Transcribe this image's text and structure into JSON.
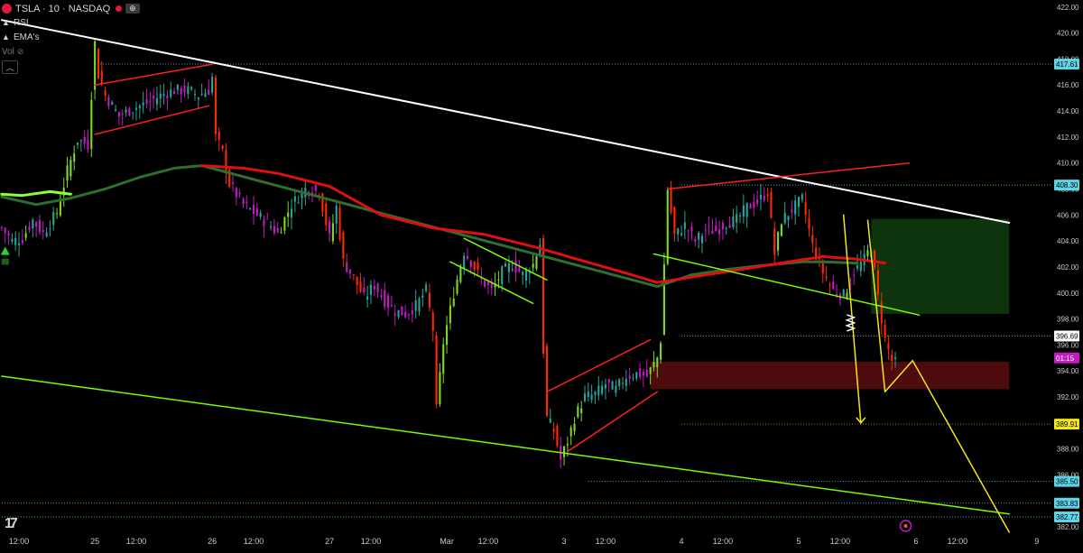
{
  "header": {
    "symbol": "TSLA · 10 · NASDAQ",
    "indicators": [
      "RSI",
      "EMA's"
    ],
    "vol_label": "Vol",
    "collapse_icon": "chevron-up-icon"
  },
  "colors": {
    "background": "#000000",
    "up": "#26a69a",
    "up_green": "#7cd82a",
    "down": "#c21bc2",
    "down_red": "#ff2a00",
    "ema_fast_up": "#8aff3b",
    "ema_slow": "#2f6e2f",
    "ema_red": "#e01010",
    "trendline": "#ffffff",
    "channel_green": "#7cfc00",
    "wedge_red": "#ff2020",
    "projection": "#f5e61b",
    "supply_zone": "#5a0d0d",
    "target_zone": "#0f3a0f"
  },
  "chart_data": {
    "type": "candlestick",
    "interval": "10",
    "symbol": "TSLA",
    "exchange": "NASDAQ",
    "ylim": [
      381.8,
      422.4
    ],
    "y_ticks": [
      "422.00",
      "420.00",
      "418.00",
      "416.00",
      "414.00",
      "412.00",
      "410.00",
      "408.00",
      "406.00",
      "404.00",
      "402.00",
      "400.00",
      "398.00",
      "396.00",
      "394.00",
      "392.00",
      "390.00",
      "388.00",
      "386.00",
      "384.00",
      "382.00"
    ],
    "y_tick_values": [
      422,
      420,
      418,
      416,
      414,
      412,
      410,
      408,
      406,
      404,
      402,
      400,
      398,
      396,
      394,
      392,
      390,
      388,
      386,
      384,
      382
    ],
    "x_ticks": [
      "12:00",
      "25",
      "12:00",
      "26",
      "12:00",
      "27",
      "12:00",
      "Mar",
      "12:00",
      "3",
      "12:00",
      "4",
      "12:00",
      "5",
      "12:00",
      "6",
      "12:00",
      "9"
    ],
    "x_tick_index": [
      5,
      27,
      39,
      61,
      73,
      95,
      107,
      129,
      141,
      163,
      175,
      197,
      209,
      231,
      243,
      265,
      277,
      300
    ],
    "x_total": 305,
    "price_labels": [
      {
        "text": "417.61",
        "value": 417.61,
        "color": "#5fd3e6",
        "text_color": "#000000"
      },
      {
        "text": "408.30",
        "value": 408.3,
        "color": "#5fd3e6",
        "text_color": "#000000"
      },
      {
        "text": "396.69",
        "value": 396.69,
        "color": "#ffffff",
        "text_color": "#000000"
      },
      {
        "text": "01:15",
        "value": 395.0,
        "color": "#c21bc2",
        "text_color": "#ffffff"
      },
      {
        "text": "389.91",
        "value": 389.91,
        "color": "#f5e61b",
        "text_color": "#000000"
      },
      {
        "text": "385.50",
        "value": 385.5,
        "color": "#5fd3e6",
        "text_color": "#000000"
      },
      {
        "text": "383.83",
        "value": 383.83,
        "color": "#5fd3e6",
        "text_color": "#000000"
      },
      {
        "text": "382.77",
        "value": 382.77,
        "color": "#5fd3e6",
        "text_color": "#000000"
      }
    ],
    "horizontal_levels": [
      {
        "value": 417.61,
        "color": "#5fd3e6",
        "from": 27
      },
      {
        "value": 408.3,
        "color": "#5fd3e6",
        "from": 197
      },
      {
        "value": 396.69,
        "color": "#aaaaaa",
        "from": 197
      },
      {
        "value": 389.91,
        "color": "#b8a800",
        "from": 197
      },
      {
        "value": 385.5,
        "color": "#5fd3e6",
        "from": 170
      },
      {
        "value": 383.83,
        "color": "#5fd3e6",
        "from": 0
      },
      {
        "value": 382.77,
        "color": "#5fd3e6",
        "from": 0
      }
    ],
    "anchors": [
      [
        0,
        405.0
      ],
      [
        3,
        404.0
      ],
      [
        6,
        404.2
      ],
      [
        9,
        405.6
      ],
      [
        12,
        404.6
      ],
      [
        16,
        406.2
      ],
      [
        19,
        409.4
      ],
      [
        22,
        411.8
      ],
      [
        25,
        411.4
      ],
      [
        27,
        419.2
      ],
      [
        28,
        416.8
      ],
      [
        30,
        415.2
      ],
      [
        34,
        413.6
      ],
      [
        38,
        414.2
      ],
      [
        42,
        414.6
      ],
      [
        46,
        415.2
      ],
      [
        50,
        415.6
      ],
      [
        54,
        415.6
      ],
      [
        57,
        415.2
      ],
      [
        60,
        415.6
      ],
      [
        61,
        416.6
      ],
      [
        62,
        412.0
      ],
      [
        64,
        410.8
      ],
      [
        66,
        408.4
      ],
      [
        70,
        406.8
      ],
      [
        73,
        406.2
      ],
      [
        77,
        405.4
      ],
      [
        80,
        404.6
      ],
      [
        84,
        406.8
      ],
      [
        88,
        408.0
      ],
      [
        92,
        407.8
      ],
      [
        95,
        404.2
      ],
      [
        97,
        406.6
      ],
      [
        99,
        402.4
      ],
      [
        102,
        401.2
      ],
      [
        105,
        399.6
      ],
      [
        108,
        400.6
      ],
      [
        111,
        399.4
      ],
      [
        114,
        398.6
      ],
      [
        117,
        398.4
      ],
      [
        120,
        399.0
      ],
      [
        123,
        400.2
      ],
      [
        125,
        397.2
      ],
      [
        126,
        391.0
      ],
      [
        128,
        396.2
      ],
      [
        131,
        400.0
      ],
      [
        134,
        403.2
      ],
      [
        136,
        402.4
      ],
      [
        139,
        401.0
      ],
      [
        142,
        400.2
      ],
      [
        145,
        401.6
      ],
      [
        148,
        402.2
      ],
      [
        151,
        401.4
      ],
      [
        154,
        402.2
      ],
      [
        156,
        403.8
      ],
      [
        157,
        395.6
      ],
      [
        158,
        390.4
      ],
      [
        160,
        389.4
      ],
      [
        162,
        387.2
      ],
      [
        164,
        388.6
      ],
      [
        166,
        390.4
      ],
      [
        169,
        392.0
      ],
      [
        172,
        392.2
      ],
      [
        175,
        393.0
      ],
      [
        178,
        392.6
      ],
      [
        181,
        393.6
      ],
      [
        184,
        393.8
      ],
      [
        187,
        393.6
      ],
      [
        190,
        395.0
      ],
      [
        191,
        396.4
      ],
      [
        193,
        408.0
      ],
      [
        195,
        404.4
      ],
      [
        198,
        405.2
      ],
      [
        201,
        404.0
      ],
      [
        204,
        404.8
      ],
      [
        207,
        404.8
      ],
      [
        210,
        405.4
      ],
      [
        213,
        405.6
      ],
      [
        216,
        406.6
      ],
      [
        219,
        407.0
      ],
      [
        222,
        407.8
      ],
      [
        224,
        403.0
      ],
      [
        226,
        405.6
      ],
      [
        229,
        406.4
      ],
      [
        232,
        407.2
      ],
      [
        235,
        403.6
      ],
      [
        238,
        401.6
      ],
      [
        241,
        400.2
      ],
      [
        244,
        399.8
      ],
      [
        247,
        401.6
      ],
      [
        250,
        402.6
      ],
      [
        252,
        403.6
      ],
      [
        254,
        399.6
      ],
      [
        256,
        396.4
      ],
      [
        258,
        394.8
      ],
      [
        259,
        394.6
      ]
    ],
    "ema_slow_points": [
      [
        0,
        407.4
      ],
      [
        10,
        406.8
      ],
      [
        20,
        407.3
      ],
      [
        30,
        408.0
      ],
      [
        40,
        408.9
      ],
      [
        50,
        409.6
      ],
      [
        58,
        409.8
      ],
      [
        190,
        400.5
      ],
      [
        200,
        401.4
      ],
      [
        210,
        401.8
      ],
      [
        220,
        402.1
      ],
      [
        232,
        402.4
      ],
      [
        238,
        402.4
      ],
      [
        248,
        402.3
      ]
    ],
    "ema_red_points": [
      [
        58,
        409.8
      ],
      [
        70,
        409.6
      ],
      [
        80,
        409.2
      ],
      [
        95,
        408.2
      ],
      [
        110,
        406.0
      ],
      [
        125,
        405.0
      ],
      [
        140,
        404.5
      ],
      [
        155,
        403.5
      ],
      [
        168,
        402.5
      ],
      [
        180,
        401.6
      ],
      [
        190,
        400.8
      ],
      [
        238,
        402.8
      ],
      [
        248,
        402.6
      ],
      [
        256,
        402.3
      ]
    ],
    "ema_fast_green_points": [
      [
        0,
        407.6
      ],
      [
        6,
        407.5
      ],
      [
        14,
        407.8
      ],
      [
        20,
        407.6
      ]
    ],
    "trendline_white": [
      [
        0,
        421.0
      ],
      [
        292,
        405.4
      ]
    ],
    "channel_green_lower": [
      [
        0,
        393.6
      ],
      [
        292,
        383.0
      ]
    ],
    "wedge_red_upper_1": [
      [
        27,
        416.0
      ],
      [
        61,
        417.6
      ]
    ],
    "wedge_red_lower_1": [
      [
        27,
        412.2
      ],
      [
        60,
        414.4
      ]
    ],
    "flag_green_upper": [
      [
        134,
        404.2
      ],
      [
        158,
        401.0
      ]
    ],
    "flag_green_lower": [
      [
        130,
        402.4
      ],
      [
        154,
        399.2
      ]
    ],
    "wedge_red_3_upper": [
      [
        158,
        392.4
      ],
      [
        188,
        396.4
      ]
    ],
    "wedge_red_3_lower": [
      [
        164,
        387.8
      ],
      [
        190,
        392.4
      ]
    ],
    "wedge_red_4_upper": [
      [
        193,
        408.0
      ],
      [
        263,
        410.0
      ]
    ],
    "green_line_4_lower": [
      [
        189,
        403.0
      ],
      [
        266,
        398.3
      ]
    ],
    "supply_box": {
      "x1": 188,
      "x2": 292,
      "y1": 394.7,
      "y2": 392.6
    },
    "target_box": {
      "x1": 252,
      "x2": 292,
      "y1": 405.7,
      "y2": 398.4
    },
    "proj_yellow_1": [
      [
        244,
        406.0
      ],
      [
        249,
        390.0
      ]
    ],
    "proj_yellow_2": [
      [
        251,
        405.6
      ],
      [
        256,
        392.4
      ],
      [
        264,
        394.8
      ],
      [
        292,
        381.6
      ]
    ],
    "zigzag_label_at": [
      246,
      397.7
    ],
    "buy_arrow_at": [
      1,
      403.2
    ]
  }
}
